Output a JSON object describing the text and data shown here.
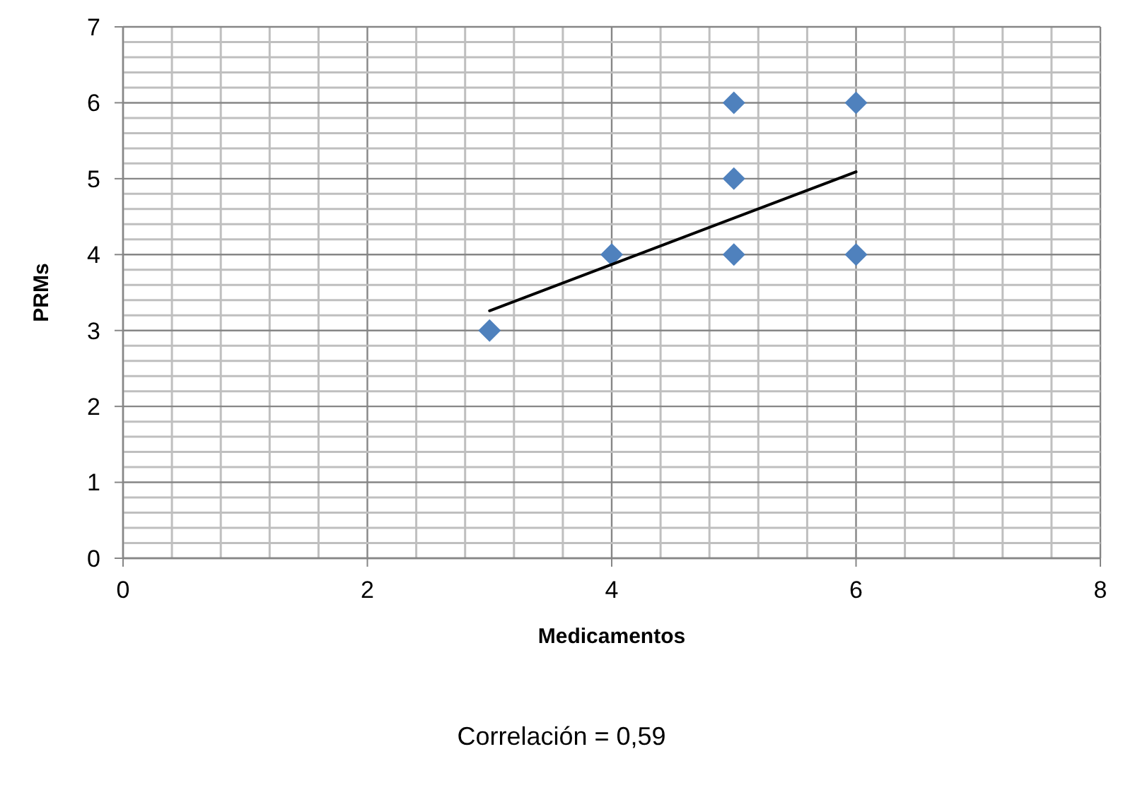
{
  "chart_data": {
    "type": "scatter",
    "xlabel": "Medicamentos",
    "ylabel": "PRMs",
    "series": [
      {
        "color": "#4f81bd",
        "marker": "diamond",
        "x": [
          3,
          4,
          5,
          5,
          5,
          6,
          6
        ],
        "values": [
          3,
          4,
          6,
          5,
          4,
          6,
          4
        ]
      },
      {
        "type": "line",
        "color": "#000000",
        "marker": "none",
        "line_style": "solid",
        "x": [
          3,
          6
        ],
        "values": [
          3.26,
          5.09
        ]
      }
    ],
    "xlim": [
      0,
      8
    ],
    "xticks": [
      0,
      {
        "value": 0.4,
        "label": null
      },
      {
        "value": 0.8,
        "label": null
      },
      {
        "value": 1.2,
        "label": null
      },
      {
        "value": 1.6,
        "label": null
      },
      2,
      {
        "value": 2.4,
        "label": null
      },
      {
        "value": 2.8,
        "label": null
      },
      {
        "value": 3.2,
        "label": null
      },
      {
        "value": 3.6,
        "label": null
      },
      4,
      {
        "value": 4.4,
        "label": null
      },
      {
        "value": 4.8,
        "label": null
      },
      {
        "value": 5.2,
        "label": null
      },
      {
        "value": 5.6,
        "label": null
      },
      6,
      {
        "value": 6.4,
        "label": null
      },
      {
        "value": 6.8,
        "label": null
      },
      {
        "value": 7.2,
        "label": null
      },
      {
        "value": 7.6,
        "label": null
      },
      8
    ],
    "ylim": [
      0,
      7
    ],
    "yticks": [
      0,
      {
        "value": 0.2,
        "label": null
      },
      {
        "value": 0.4,
        "label": null
      },
      {
        "value": 0.6,
        "label": null
      },
      {
        "value": 0.8,
        "label": null
      },
      1,
      {
        "value": 1.2,
        "label": null
      },
      {
        "value": 1.4,
        "label": null
      },
      {
        "value": 1.6,
        "label": null
      },
      {
        "value": 1.8,
        "label": null
      },
      2,
      {
        "value": 2.2,
        "label": null
      },
      {
        "value": 2.4,
        "label": null
      },
      {
        "value": 2.6,
        "label": null
      },
      {
        "value": 2.8,
        "label": null
      },
      3,
      {
        "value": 3.2,
        "label": null
      },
      {
        "value": 3.4,
        "label": null
      },
      {
        "value": 3.6,
        "label": null
      },
      {
        "value": 3.8,
        "label": null
      },
      4,
      {
        "value": 4.2,
        "label": null
      },
      {
        "value": 4.4,
        "label": null
      },
      {
        "value": 4.6,
        "label": null
      },
      {
        "value": 4.8,
        "label": null
      },
      5,
      {
        "value": 5.2,
        "label": null
      },
      {
        "value": 5.4,
        "label": null
      },
      {
        "value": 5.6,
        "label": null
      },
      {
        "value": 5.8,
        "label": null
      },
      6,
      {
        "value": 6.2,
        "label": null
      },
      {
        "value": 6.4,
        "label": null
      },
      {
        "value": 6.6,
        "label": null
      },
      {
        "value": 6.8,
        "label": null
      },
      7
    ],
    "grid": true,
    "annotations": [
      "Correlación = 0,59"
    ]
  }
}
